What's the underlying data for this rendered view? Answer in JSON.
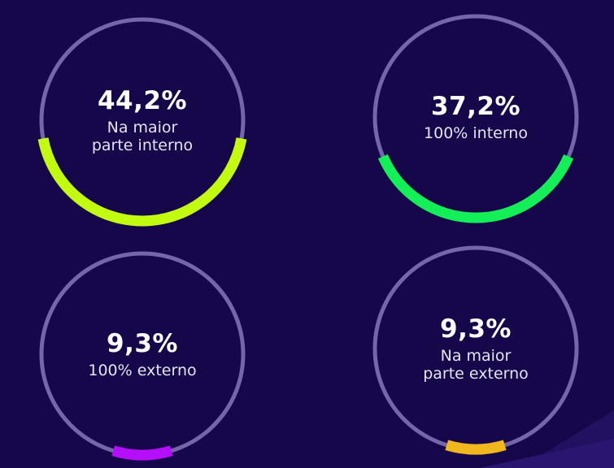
{
  "chart_data": [
    {
      "type": "pie",
      "value_text": "44,2%",
      "value": 44.2,
      "label": [
        "Na maior",
        "parte interno"
      ],
      "color": "#c2fb10"
    },
    {
      "type": "pie",
      "value_text": "37,2%",
      "value": 37.2,
      "label": [
        "100% interno"
      ],
      "color": "#12ef57"
    },
    {
      "type": "pie",
      "value_text": "9,3%",
      "value": 9.3,
      "label": [
        "100% externo"
      ],
      "color": "#b40efb"
    },
    {
      "type": "pie",
      "value_text": "9,3%",
      "value": 9.3,
      "label": [
        "Na maior",
        "parte externo"
      ],
      "color": "#f1b81e"
    }
  ],
  "colors": {
    "background": "#16064a",
    "track": "#7466a8"
  }
}
